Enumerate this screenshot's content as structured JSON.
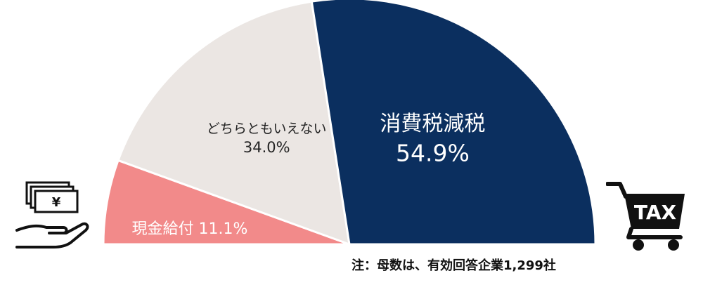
{
  "chart_data": {
    "type": "pie",
    "subtype": "semicircle",
    "categories": [
      "現金給付",
      "どちらともいえない",
      "消費税減税"
    ],
    "values": [
      11.1,
      34.0,
      54.9
    ],
    "value_labels": [
      "11.1%",
      "34.0%",
      "54.9%"
    ],
    "colors": [
      "#f28a8a",
      "#ebe6e3",
      "#0b2f5f"
    ],
    "note": "注：母数は、有効回答企業1,299社"
  },
  "icons": {
    "left": "cash-in-hand-icon",
    "right": "tax-shopping-cart-icon",
    "yen_symbol": "¥",
    "tax_text": "TAX"
  }
}
